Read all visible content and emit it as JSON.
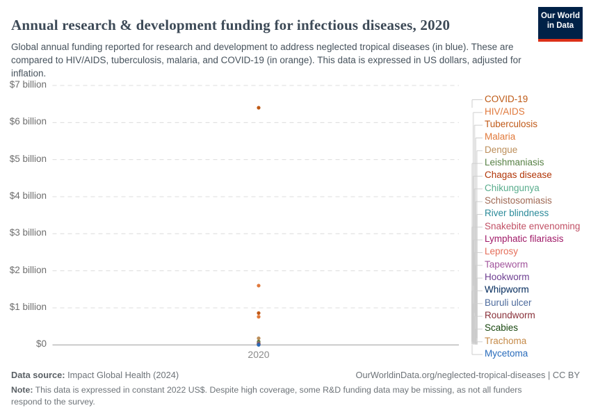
{
  "header": {
    "title": "Annual research & development funding for infectious diseases, 2020",
    "subtitle": "Global annual funding reported for research and development to address neglected tropical diseases (in blue). These are compared to HIV/AIDS, tuberculosis, malaria, and COVID-19 (in orange). This data is expressed in US dollars, adjusted for inflation.",
    "logo": {
      "line1": "Our World",
      "line2": "in Data",
      "bg_color": "#002147",
      "stripe_color": "#dc3018"
    }
  },
  "chart_data": {
    "type": "scatter",
    "title": "Annual research & development funding for infectious diseases, 2020",
    "unit": "billion US$ (constant 2022 US$)",
    "x_values": [
      2020
    ],
    "x_tick_label": "2020",
    "y_axis": {
      "range": [
        0,
        7
      ],
      "gridlines": "horizontal dashed, solid at zero",
      "ticks": [
        {
          "value": 0,
          "label": "$0"
        },
        {
          "value": 1,
          "label": "$1 billion"
        },
        {
          "value": 2,
          "label": "$2 billion"
        },
        {
          "value": 3,
          "label": "$3 billion"
        },
        {
          "value": 4,
          "label": "$4 billion"
        },
        {
          "value": 5,
          "label": "$5 billion"
        },
        {
          "value": 6,
          "label": "$6 billion"
        },
        {
          "value": 7,
          "label": "$7 billion"
        }
      ]
    },
    "legend_position": "right",
    "series": [
      {
        "name": "COVID-19",
        "value_billion_usd": 6.4,
        "color": "#BE5915"
      },
      {
        "name": "HIV/AIDS",
        "value_billion_usd": 1.6,
        "color": "#E0793C"
      },
      {
        "name": "Tuberculosis",
        "value_billion_usd": 0.86,
        "color": "#C05917"
      },
      {
        "name": "Malaria",
        "value_billion_usd": 0.76,
        "color": "#E1793A"
      },
      {
        "name": "Dengue",
        "value_billion_usd": 0.18,
        "color": "#BC8E5A"
      },
      {
        "name": "Leishmaniasis",
        "value_billion_usd": 0.09,
        "color": "#578145"
      },
      {
        "name": "Chagas disease",
        "value_billion_usd": 0.06,
        "color": "#B13507"
      },
      {
        "name": "Chikungunya",
        "value_billion_usd": 0.05,
        "color": "#58AC8C"
      },
      {
        "name": "Schistosomiasis",
        "value_billion_usd": 0.04,
        "color": "#A06A55"
      },
      {
        "name": "River blindness",
        "value_billion_usd": 0.035,
        "color": "#2B8A99"
      },
      {
        "name": "Snakebite envenoming",
        "value_billion_usd": 0.03,
        "color": "#C15065"
      },
      {
        "name": "Lymphatic filariasis",
        "value_billion_usd": 0.025,
        "color": "#A01A68"
      },
      {
        "name": "Leprosy",
        "value_billion_usd": 0.02,
        "color": "#E56E5A"
      },
      {
        "name": "Tapeworm",
        "value_billion_usd": 0.015,
        "color": "#A2559C"
      },
      {
        "name": "Hookworm",
        "value_billion_usd": 0.012,
        "color": "#6D3E91"
      },
      {
        "name": "Whipworm",
        "value_billion_usd": 0.01,
        "color": "#00295B"
      },
      {
        "name": "Buruli ulcer",
        "value_billion_usd": 0.008,
        "color": "#4C6A9C"
      },
      {
        "name": "Roundworm",
        "value_billion_usd": 0.007,
        "color": "#883039"
      },
      {
        "name": "Scabies",
        "value_billion_usd": 0.005,
        "color": "#18470F"
      },
      {
        "name": "Trachoma",
        "value_billion_usd": 0.004,
        "color": "#C58A48"
      },
      {
        "name": "Mycetoma",
        "value_billion_usd": 0.002,
        "color": "#286BBB"
      }
    ]
  },
  "footer": {
    "datasource_label": "Data source:",
    "datasource_value": " Impact Global Health (2024)",
    "attribution": "OurWorldinData.org/neglected-tropical-diseases | CC BY",
    "note_label": "Note:",
    "note_value": " This data is expressed in constant 2022 US$. Despite high coverage, some R&D funding data may be missing, as not all funders respond to the survey."
  }
}
